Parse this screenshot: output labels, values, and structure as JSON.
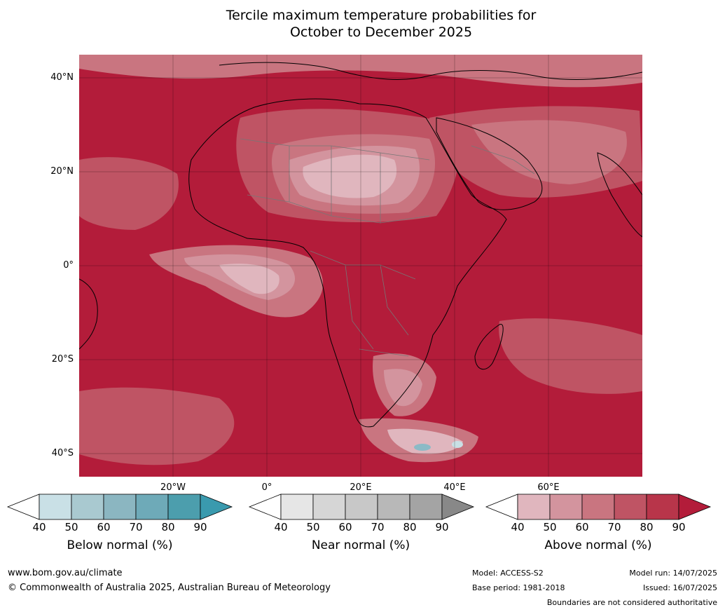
{
  "title_line1": "Tercile maximum temperature probabilities for",
  "title_line2": "October to December 2025",
  "map": {
    "lat_labels": [
      "40°N",
      "20°N",
      "0°",
      "20°S",
      "40°S"
    ],
    "lon_labels": [
      "20°W",
      "0°",
      "20°E",
      "40°E",
      "60°E"
    ],
    "colors": {
      "ocean_base": "#b31c3a",
      "above_40": "#e0b6be",
      "above_50": "#d3949e",
      "above_60": "#c97580",
      "above_70": "#bf5464",
      "above_80": "#b8354a",
      "above_90": "#b31c3a",
      "near_40": "#e6e6e6",
      "below_40": "#c9e0e6",
      "below_60": "#8bbac6"
    }
  },
  "legend": {
    "below": {
      "title": "Below normal (%)",
      "ticks": [
        "40",
        "50",
        "60",
        "70",
        "80",
        "90"
      ],
      "colors": [
        "#c9e0e6",
        "#a9c9d0",
        "#8bb6c1",
        "#6eaab8",
        "#4c9ead",
        "#3a9aae"
      ]
    },
    "near": {
      "title": "Near normal (%)",
      "ticks": [
        "40",
        "50",
        "60",
        "70",
        "80",
        "90"
      ],
      "colors": [
        "#e6e6e6",
        "#d6d6d6",
        "#c8c8c8",
        "#b8b8b8",
        "#a4a4a4",
        "#888888"
      ]
    },
    "above": {
      "title": "Above normal (%)",
      "ticks": [
        "40",
        "50",
        "60",
        "70",
        "80",
        "90"
      ],
      "colors": [
        "#e0b6be",
        "#d3949e",
        "#c97580",
        "#bf5464",
        "#b8354a",
        "#b31c3a"
      ]
    }
  },
  "footer": {
    "website": "www.bom.gov.au/climate",
    "copyright": "© Commonwealth of Australia 2025, Australian Bureau of Meteorology",
    "model": "Model: ACCESS-S2",
    "base_period": "Base period: 1981-2018",
    "model_run": "Model run: 14/07/2025",
    "issued": "Issued: 16/07/2025",
    "boundaries": "Boundaries are not considered authoritative"
  }
}
